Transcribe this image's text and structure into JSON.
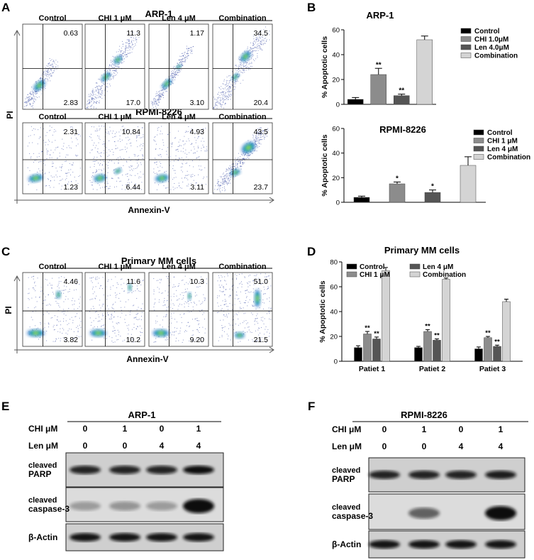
{
  "panels": {
    "A": "A",
    "B": "B",
    "C": "C",
    "D": "D",
    "E": "E",
    "F": "F"
  },
  "flow": {
    "pi_label": "PI",
    "annexin_label": "Annexin-V",
    "arp_title": "ARP-1",
    "rpmi_title": "RPMI-8226",
    "primary_title": "Primary MM cells",
    "conditions": [
      "Control",
      "CHI 1 μM",
      "Len 4 μM",
      "Combination"
    ],
    "arp_quadrants": [
      [
        "0.63",
        "2.83"
      ],
      [
        "11.3",
        "17.0"
      ],
      [
        "1.17",
        "3.10"
      ],
      [
        "34.5",
        "20.4"
      ]
    ],
    "rpmi_quadrants": [
      [
        "2.31",
        "1.23"
      ],
      [
        "10.84",
        "6.44"
      ],
      [
        "4.93",
        "3.11"
      ],
      [
        "43.5",
        "23.7"
      ]
    ],
    "primary_quadrants": [
      [
        "4.46",
        "3.82"
      ],
      [
        "11.6",
        "10.2"
      ],
      [
        "10.3",
        "9.20"
      ],
      [
        "51.0",
        "21.5"
      ]
    ]
  },
  "chart_data": [
    {
      "type": "bar",
      "title": "ARP-1",
      "ylabel": "% Apoptotic cells",
      "ylim": [
        0,
        60
      ],
      "yticks": [
        0,
        20,
        40,
        60
      ],
      "categories": [
        "Control",
        "CHI 1.0μM",
        "Len 4.0μM",
        "Combination"
      ],
      "values": [
        4,
        24,
        7,
        52
      ],
      "errors": [
        1.5,
        5,
        1.2,
        3
      ],
      "sig": [
        "",
        "**",
        "**",
        ""
      ],
      "colors": [
        "#000000",
        "#8c8c8c",
        "#555555",
        "#d4d4d4"
      ],
      "legend": "top-right"
    },
    {
      "type": "bar",
      "title": "RPMI-8226",
      "ylabel": "% Apoptotic cells",
      "ylim": [
        0,
        60
      ],
      "yticks": [
        0,
        20,
        40,
        60
      ],
      "categories": [
        "Control",
        "CHI 1 μM",
        "Len 4 μM",
        "Combination"
      ],
      "values": [
        4,
        15,
        8,
        30
      ],
      "errors": [
        1,
        1.5,
        2,
        7
      ],
      "sig": [
        "",
        "*",
        "*",
        ""
      ],
      "colors": [
        "#000000",
        "#8c8c8c",
        "#555555",
        "#d4d4d4"
      ],
      "legend": "top-right"
    },
    {
      "type": "bar",
      "title": "Primary MM cells",
      "ylabel": "% Apoptotic cells",
      "ylim": [
        0,
        80
      ],
      "yticks": [
        0,
        20,
        40,
        60,
        80
      ],
      "categories": [
        "Patiet 1",
        "Patiet 2",
        "Patiet 3"
      ],
      "legend_labels": [
        "Control",
        "CHI 1 μM",
        "Len 4 μM",
        "Combination"
      ],
      "series": [
        {
          "name": "Control",
          "values": [
            11,
            11,
            10
          ],
          "errors": [
            1.5,
            1,
            1.5
          ],
          "sig": [
            "",
            "",
            ""
          ]
        },
        {
          "name": "CHI 1 μM",
          "values": [
            22,
            24,
            19
          ],
          "errors": [
            2,
            1.5,
            1
          ],
          "sig": [
            "**",
            "**",
            "**"
          ]
        },
        {
          "name": "Len 4 μM",
          "values": [
            18,
            17,
            12
          ],
          "errors": [
            1.5,
            1,
            1
          ],
          "sig": [
            "**",
            "**",
            "**"
          ]
        },
        {
          "name": "Combination",
          "values": [
            73,
            66,
            48
          ],
          "errors": [
            2.5,
            1,
            2
          ],
          "sig": [
            "",
            "",
            ""
          ]
        }
      ],
      "colors": [
        "#000000",
        "#8c8c8c",
        "#555555",
        "#d4d4d4"
      ],
      "legend": "top"
    }
  ],
  "western": {
    "E": {
      "title": "ARP-1",
      "chi_label": "CHI  μM",
      "len_label": "Len  μM",
      "chi": [
        "0",
        "1",
        "0",
        "1"
      ],
      "len": [
        "0",
        "0",
        "4",
        "4"
      ],
      "rows": [
        "cleaved PARP",
        "cleaved caspase-3",
        "β-Actin"
      ]
    },
    "F": {
      "title": "RPMI-8226",
      "chi_label": "CHI  μM",
      "len_label": "Len  μM",
      "chi": [
        "0",
        "1",
        "0",
        "1"
      ],
      "len": [
        "0",
        "0",
        "4",
        "4"
      ],
      "rows": [
        "cleaved PARP",
        "cleaved caspase-3",
        "β-Actin"
      ]
    }
  }
}
